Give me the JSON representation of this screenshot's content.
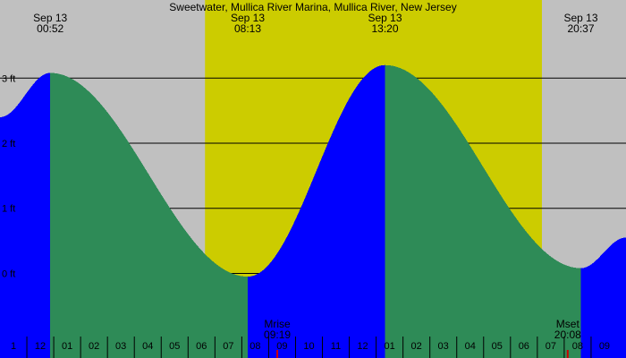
{
  "chart_data": {
    "type": "area",
    "title": "Sweetwater, Mullica River Marina, Mullica River, New Jersey",
    "xlabel": "",
    "ylabel": "",
    "x_range_hours": [
      0.0,
      23.3
    ],
    "ylim": [
      -1.3,
      4.2
    ],
    "y_ticks": [
      {
        "value": 0,
        "label": "0 ft"
      },
      {
        "value": 1,
        "label": "1 ft"
      },
      {
        "value": 2,
        "label": "2 ft"
      },
      {
        "value": 3,
        "label": "3 ft"
      }
    ],
    "x_ticks": [
      {
        "hour": 0.0,
        "label": "1"
      },
      {
        "hour": 1.0,
        "label": "12"
      },
      {
        "hour": 2.0,
        "label": "01"
      },
      {
        "hour": 3.0,
        "label": "02"
      },
      {
        "hour": 4.0,
        "label": "03"
      },
      {
        "hour": 5.0,
        "label": "04"
      },
      {
        "hour": 6.0,
        "label": "05"
      },
      {
        "hour": 7.0,
        "label": "06"
      },
      {
        "hour": 8.0,
        "label": "07"
      },
      {
        "hour": 9.0,
        "label": "08"
      },
      {
        "hour": 10.0,
        "label": "09"
      },
      {
        "hour": 11.0,
        "label": "10"
      },
      {
        "hour": 12.0,
        "label": "11"
      },
      {
        "hour": 13.0,
        "label": "12"
      },
      {
        "hour": 14.0,
        "label": "01"
      },
      {
        "hour": 15.0,
        "label": "02"
      },
      {
        "hour": 16.0,
        "label": "03"
      },
      {
        "hour": 17.0,
        "label": "04"
      },
      {
        "hour": 18.0,
        "label": "05"
      },
      {
        "hour": 19.0,
        "label": "06"
      },
      {
        "hour": 20.0,
        "label": "07"
      },
      {
        "hour": 21.0,
        "label": "08"
      },
      {
        "hour": 22.0,
        "label": "09"
      }
    ],
    "tide_extremes": [
      {
        "date": "Sep 13",
        "time": "00:52",
        "hour": 1.87,
        "height_ft": 3.08
      },
      {
        "date": "Sep 13",
        "time": "08:13",
        "hour": 9.22,
        "height_ft": -0.05
      },
      {
        "date": "Sep 13",
        "time": "13:20",
        "hour": 14.33,
        "height_ft": 3.2
      },
      {
        "date": "Sep 13",
        "time": "20:37",
        "hour": 21.62,
        "height_ft": 0.08
      }
    ],
    "tide_start": {
      "hour": 0.0,
      "height_ft": 2.4
    },
    "tide_end": {
      "hour": 23.3,
      "height_ft": 0.55
    },
    "daylight": {
      "start_hour": 7.63,
      "end_hour": 20.17
    },
    "moon_events": [
      {
        "label": "Mrise",
        "time": "09:19",
        "hour": 10.32
      },
      {
        "label": "Mset",
        "time": "20:08",
        "hour": 21.13
      }
    ],
    "colors": {
      "night": "#c0c0c0",
      "day": "#cccc00",
      "rising": "#0000ff",
      "falling": "#2e8b57",
      "moon_marker": "#cc0000",
      "gridline": "#000000"
    }
  }
}
